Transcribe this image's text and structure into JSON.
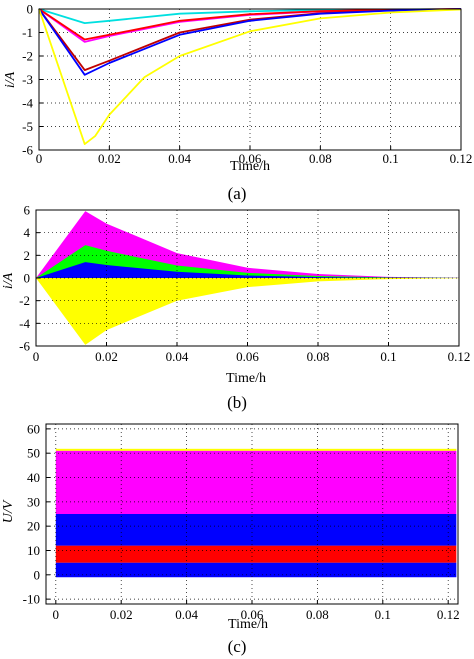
{
  "chart_data": [
    {
      "id": "a",
      "type": "line",
      "panel_label": "(a)",
      "xlabel": "Time/h",
      "ylabel": "i/A",
      "xlim": [
        0,
        0.12
      ],
      "ylim": [
        -6,
        0
      ],
      "xticks": [
        0,
        0.02,
        0.04,
        0.06,
        0.08,
        0.1,
        0.12
      ],
      "xtick_labels": [
        "0",
        "0.02",
        "0.04",
        "0.06",
        "0.08",
        "0.1",
        "0.12"
      ],
      "yticks": [
        0,
        -1,
        -2,
        -3,
        -4,
        -5,
        -6
      ],
      "ytick_labels": [
        "0",
        "-1",
        "-2",
        "-3",
        "-4",
        "-5",
        "-6"
      ],
      "grid": true,
      "series": [
        {
          "color": "#00e0e0",
          "points": [
            [
              0,
              0
            ],
            [
              0.013,
              -0.6
            ],
            [
              0.02,
              -0.5
            ],
            [
              0.04,
              -0.2
            ],
            [
              0.06,
              -0.1
            ],
            [
              0.08,
              -0.04
            ],
            [
              0.1,
              -0.02
            ],
            [
              0.12,
              0
            ]
          ]
        },
        {
          "color": "#ff00ff",
          "points": [
            [
              0,
              0
            ],
            [
              0.013,
              -1.4
            ],
            [
              0.02,
              -1.15
            ],
            [
              0.04,
              -0.55
            ],
            [
              0.06,
              -0.25
            ],
            [
              0.08,
              -0.1
            ],
            [
              0.1,
              -0.04
            ],
            [
              0.12,
              0
            ]
          ]
        },
        {
          "color": "#ff0000",
          "points": [
            [
              0,
              0
            ],
            [
              0.013,
              -1.3
            ],
            [
              0.02,
              -1.1
            ],
            [
              0.04,
              -0.5
            ],
            [
              0.06,
              -0.22
            ],
            [
              0.08,
              -0.09
            ],
            [
              0.1,
              -0.03
            ],
            [
              0.12,
              0
            ]
          ]
        },
        {
          "color": "#c00000",
          "points": [
            [
              0,
              0
            ],
            [
              0.013,
              -2.6
            ],
            [
              0.02,
              -2.2
            ],
            [
              0.04,
              -1.0
            ],
            [
              0.06,
              -0.45
            ],
            [
              0.08,
              -0.18
            ],
            [
              0.1,
              -0.06
            ],
            [
              0.12,
              0
            ]
          ]
        },
        {
          "color": "#0000ff",
          "points": [
            [
              0,
              0
            ],
            [
              0.013,
              -2.8
            ],
            [
              0.02,
              -2.3
            ],
            [
              0.04,
              -1.1
            ],
            [
              0.06,
              -0.5
            ],
            [
              0.08,
              -0.2
            ],
            [
              0.1,
              -0.07
            ],
            [
              0.12,
              0
            ]
          ]
        },
        {
          "color": "#ffff00",
          "points": [
            [
              0,
              0
            ],
            [
              0.013,
              -5.75
            ],
            [
              0.016,
              -5.4
            ],
            [
              0.02,
              -4.5
            ],
            [
              0.03,
              -2.9
            ],
            [
              0.04,
              -2.0
            ],
            [
              0.06,
              -0.95
            ],
            [
              0.08,
              -0.4
            ],
            [
              0.1,
              -0.15
            ],
            [
              0.12,
              -0.02
            ]
          ]
        }
      ]
    },
    {
      "id": "b",
      "type": "area",
      "panel_label": "(b)",
      "xlabel": "Time/h",
      "ylabel": "i/A",
      "xlim": [
        0,
        0.12
      ],
      "ylim": [
        -6,
        6
      ],
      "xticks": [
        0,
        0.02,
        0.04,
        0.06,
        0.08,
        0.1,
        0.12
      ],
      "xtick_labels": [
        "0",
        "0.02",
        "0.04",
        "0.06",
        "0.08",
        "0.1",
        "0.12"
      ],
      "yticks": [
        6,
        4,
        2,
        0,
        -2,
        -4,
        -6
      ],
      "ytick_labels": [
        "6",
        "4",
        "2",
        "0",
        "-2",
        "-4",
        "-6"
      ],
      "grid": true,
      "series": [
        {
          "color": "#ff00ff",
          "side": "upper",
          "points": [
            [
              0,
              0
            ],
            [
              0.014,
              5.9
            ],
            [
              0.02,
              4.8
            ],
            [
              0.04,
              2.2
            ],
            [
              0.06,
              0.9
            ],
            [
              0.08,
              0.35
            ],
            [
              0.1,
              0.1
            ],
            [
              0.12,
              0.02
            ]
          ]
        },
        {
          "color": "#00ff00",
          "side": "upper",
          "points": [
            [
              0,
              0
            ],
            [
              0.014,
              2.9
            ],
            [
              0.02,
              2.4
            ],
            [
              0.04,
              1.1
            ],
            [
              0.06,
              0.45
            ],
            [
              0.08,
              0.18
            ],
            [
              0.1,
              0.05
            ],
            [
              0.12,
              0.01
            ]
          ]
        },
        {
          "color": "#0000ff",
          "side": "upper",
          "points": [
            [
              0,
              0
            ],
            [
              0.014,
              1.4
            ],
            [
              0.02,
              1.15
            ],
            [
              0.04,
              0.55
            ],
            [
              0.06,
              0.22
            ],
            [
              0.08,
              0.08
            ],
            [
              0.1,
              0.02
            ],
            [
              0.12,
              0
            ]
          ]
        },
        {
          "color": "#ffff00",
          "side": "lower",
          "points": [
            [
              0,
              0
            ],
            [
              0.014,
              -5.9
            ],
            [
              0.02,
              -4.6
            ],
            [
              0.04,
              -2.0
            ],
            [
              0.06,
              -0.8
            ],
            [
              0.08,
              -0.3
            ],
            [
              0.1,
              -0.1
            ],
            [
              0.12,
              -0.02
            ]
          ]
        }
      ]
    },
    {
      "id": "c",
      "type": "area",
      "panel_label": "(c)",
      "xlabel": "Time/h",
      "ylabel": "U/V",
      "xlim": [
        -0.003,
        0.123
      ],
      "ylim": [
        -12,
        62
      ],
      "xticks": [
        0,
        0.02,
        0.04,
        0.06,
        0.08,
        0.1,
        0.12
      ],
      "xtick_labels": [
        "0",
        "0.02",
        "0.04",
        "0.06",
        "0.08",
        "0.1",
        "0.12"
      ],
      "yticks": [
        60,
        50,
        40,
        30,
        20,
        10,
        0,
        -10
      ],
      "ytick_labels": [
        "60",
        "50",
        "40",
        "30",
        "20",
        "10",
        "0",
        "-10"
      ],
      "grid": true,
      "bands": [
        {
          "color": "#0000ff",
          "lo": -1,
          "hi": 5
        },
        {
          "color": "#ff0000",
          "lo": 5,
          "hi": 12
        },
        {
          "color": "#0000ff",
          "lo": 12,
          "hi": 25
        },
        {
          "color": "#ff00ff",
          "lo": 25,
          "hi": 51
        },
        {
          "color": "#ffff00",
          "lo": 51,
          "hi": 51.8
        }
      ]
    }
  ]
}
